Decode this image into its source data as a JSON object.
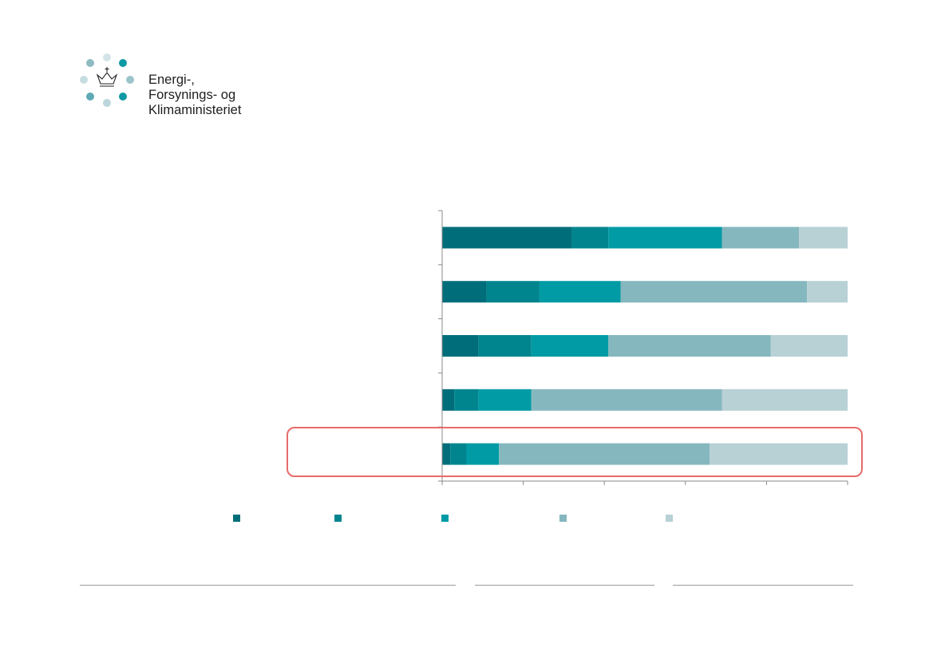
{
  "logo": {
    "icon": "crown-icon",
    "lines": [
      "Energi-,",
      "Forsynings- og",
      "Klimaministeriet"
    ],
    "dot_colors": [
      "#d3e4e8",
      "#0e9aa4",
      "#9cc4cb",
      "#0e9aa4",
      "#bcd6db",
      "#5ea9b5",
      "#c6dde1",
      "#8fbbc3"
    ]
  },
  "colors": {
    "s1": "#006e7a",
    "s2": "#00858f",
    "s3": "#009ba5",
    "s4": "#85b7bf",
    "s5": "#b7d1d5",
    "highlight": "#e86a6a"
  },
  "chart_data": {
    "type": "bar",
    "orientation": "horizontal",
    "stacked": true,
    "xlim": [
      0,
      100
    ],
    "x_ticks_count": 6,
    "grid": false,
    "legend": "bottom",
    "categories": [
      "",
      "",
      "",
      "",
      ""
    ],
    "series": [
      {
        "color_key": "s1",
        "values": [
          32,
          11,
          9,
          3,
          2
        ]
      },
      {
        "color_key": "s2",
        "values": [
          9,
          13,
          13,
          6,
          4
        ]
      },
      {
        "color_key": "s3",
        "values": [
          28,
          20,
          19,
          13,
          8
        ]
      },
      {
        "color_key": "s4",
        "values": [
          19,
          46,
          40,
          47,
          52
        ]
      },
      {
        "color_key": "s5",
        "values": [
          12,
          10,
          19,
          31,
          34
        ]
      }
    ],
    "highlighted_category_index": 4
  }
}
